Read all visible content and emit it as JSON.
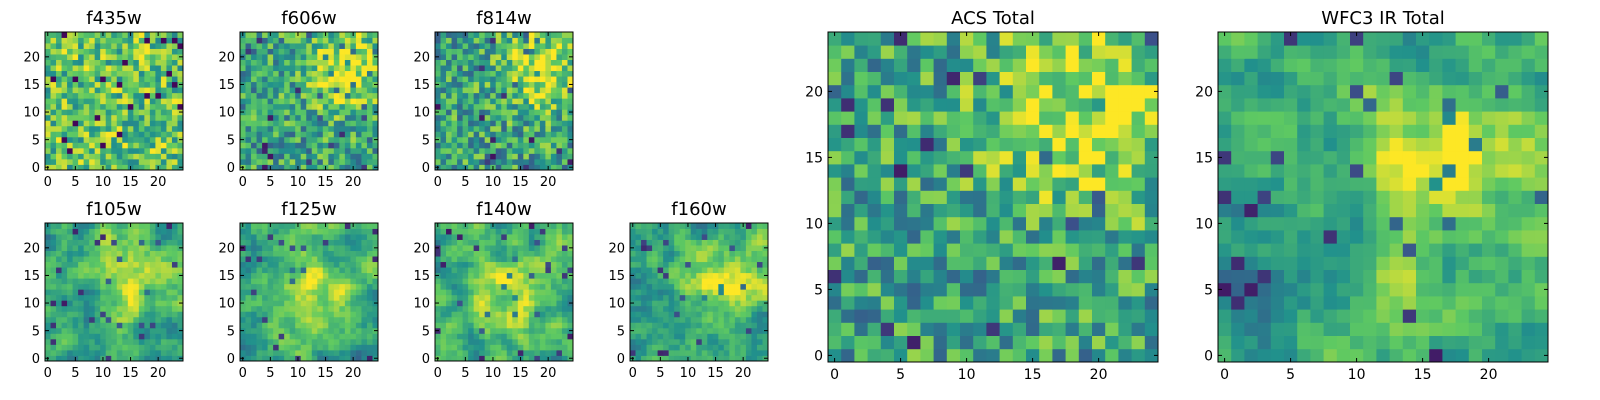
{
  "figure": {
    "colormap": "viridis",
    "colors": {
      "viridis_stops": [
        "#440154",
        "#3b528b",
        "#21918c",
        "#5ec962",
        "#fde725"
      ],
      "frame": "#000000",
      "background": "#ffffff"
    }
  },
  "chart_data": [
    {
      "id": "f435w",
      "title": "f435w",
      "type": "heatmap",
      "grid_size": 25,
      "x_ticks": [
        "0",
        "5",
        "10",
        "15",
        "20"
      ],
      "y_ticks": [
        "0",
        "5",
        "10",
        "15",
        "20"
      ],
      "xlim": [
        -0.5,
        24.5
      ],
      "ylim": [
        -0.5,
        24.5
      ],
      "value_range": [
        0,
        1
      ],
      "texture": "high-contrast noise",
      "bright_region": "none"
    },
    {
      "id": "f606w",
      "title": "f606w",
      "type": "heatmap",
      "grid_size": 25,
      "x_ticks": [
        "0",
        "5",
        "10",
        "15",
        "20"
      ],
      "y_ticks": [
        "0",
        "5",
        "10",
        "15",
        "20"
      ],
      "xlim": [
        -0.5,
        24.5
      ],
      "ylim": [
        -0.5,
        24.5
      ],
      "value_range": [
        0,
        1
      ],
      "texture": "noise",
      "bright_region": "upper-right"
    },
    {
      "id": "f814w",
      "title": "f814w",
      "type": "heatmap",
      "grid_size": 25,
      "x_ticks": [
        "0",
        "5",
        "10",
        "15",
        "20"
      ],
      "y_ticks": [
        "0",
        "5",
        "10",
        "15",
        "20"
      ],
      "xlim": [
        -0.5,
        24.5
      ],
      "ylim": [
        -0.5,
        24.5
      ],
      "value_range": [
        0,
        1
      ],
      "texture": "noise",
      "bright_region": "upper-right"
    },
    {
      "id": "f105w",
      "title": "f105w",
      "type": "heatmap",
      "grid_size": 25,
      "x_ticks": [
        "0",
        "5",
        "10",
        "15",
        "20"
      ],
      "y_ticks": [
        "0",
        "5",
        "10",
        "15",
        "20"
      ],
      "xlim": [
        -0.5,
        24.5
      ],
      "ylim": [
        -0.5,
        24.5
      ],
      "value_range": [
        0,
        1
      ],
      "texture": "smooth",
      "bright_region": "center-right"
    },
    {
      "id": "f125w",
      "title": "f125w",
      "type": "heatmap",
      "grid_size": 25,
      "x_ticks": [
        "0",
        "5",
        "10",
        "15",
        "20"
      ],
      "y_ticks": [
        "0",
        "5",
        "10",
        "15",
        "20"
      ],
      "xlim": [
        -0.5,
        24.5
      ],
      "ylim": [
        -0.5,
        24.5
      ],
      "value_range": [
        0,
        1
      ],
      "texture": "smooth",
      "bright_region": "center"
    },
    {
      "id": "f140w",
      "title": "f140w",
      "type": "heatmap",
      "grid_size": 25,
      "x_ticks": [
        "0",
        "5",
        "10",
        "15",
        "20"
      ],
      "y_ticks": [
        "0",
        "5",
        "10",
        "15",
        "20"
      ],
      "xlim": [
        -0.5,
        24.5
      ],
      "ylim": [
        -0.5,
        24.5
      ],
      "value_range": [
        0,
        1
      ],
      "texture": "smooth",
      "bright_region": "center"
    },
    {
      "id": "f160w",
      "title": "f160w",
      "type": "heatmap",
      "grid_size": 25,
      "x_ticks": [
        "0",
        "5",
        "10",
        "15",
        "20"
      ],
      "y_ticks": [
        "0",
        "5",
        "10",
        "15",
        "20"
      ],
      "xlim": [
        -0.5,
        24.5
      ],
      "ylim": [
        -0.5,
        24.5
      ],
      "value_range": [
        0,
        1
      ],
      "texture": "smooth",
      "bright_region": "center-right"
    },
    {
      "id": "acs_total",
      "title": "ACS Total",
      "type": "heatmap",
      "grid_size": 25,
      "x_ticks": [
        "0",
        "5",
        "10",
        "15",
        "20"
      ],
      "y_ticks": [
        "0",
        "5",
        "10",
        "15",
        "20"
      ],
      "xlim": [
        -0.5,
        24.5
      ],
      "ylim": [
        -0.5,
        24.5
      ],
      "value_range": [
        0,
        1
      ],
      "texture": "noise",
      "bright_region": "upper-right"
    },
    {
      "id": "wfc3_ir_total",
      "title": "WFC3 IR Total",
      "type": "heatmap",
      "grid_size": 25,
      "x_ticks": [
        "0",
        "5",
        "10",
        "15",
        "20"
      ],
      "y_ticks": [
        "0",
        "5",
        "10",
        "15",
        "20"
      ],
      "xlim": [
        -0.5,
        24.5
      ],
      "ylim": [
        -0.5,
        24.5
      ],
      "value_range": [
        0,
        1
      ],
      "texture": "smooth",
      "bright_region": "center-upper-right"
    }
  ]
}
